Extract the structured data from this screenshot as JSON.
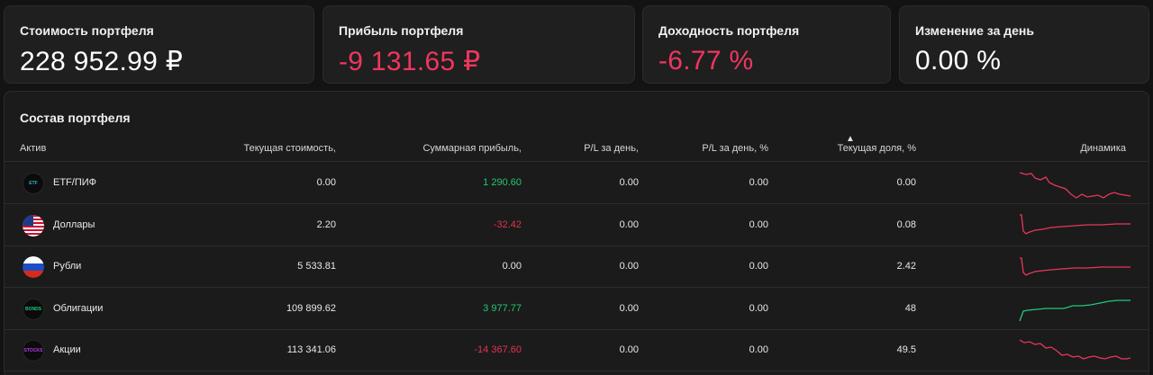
{
  "cards": [
    {
      "label": "Стоимость портфеля",
      "value": "228 952.99 ₽",
      "tone": "neutral"
    },
    {
      "label": "Прибыль портфеля",
      "value": "-9 131.65 ₽",
      "tone": "negative"
    },
    {
      "label": "Доходность портфеля",
      "value": "-6.77 %",
      "tone": "negative"
    },
    {
      "label": "Изменение за день",
      "value": "0.00 %",
      "tone": "neutral"
    }
  ],
  "table": {
    "title": "Состав портфеля",
    "columns": [
      "Актив",
      "Текущая стоимость,",
      "Суммарная прибыль,",
      "P/L за день,",
      "P/L за день, %",
      "Текущая доля, %",
      "Динамика"
    ],
    "sorted_column": "Текущая доля, %",
    "rows": [
      {
        "icon": "etf-icon",
        "icon_text": "ETF",
        "icon_color": "#2bb7c9",
        "name": "ETF/ПИФ",
        "value": "0.00",
        "profit": "1 290.60",
        "profit_tone": "positive",
        "pl_day": "0.00",
        "pl_day_pct": "0.00",
        "share": "0.00",
        "trend": "negative",
        "trend_color": "#e8365a"
      },
      {
        "icon": "usa-flag-icon",
        "icon_text": "",
        "icon_color": "",
        "name": "Доллары",
        "value": "2.20",
        "profit": "-32.42",
        "profit_tone": "negative",
        "pl_day": "0.00",
        "pl_day_pct": "0.00",
        "share": "0.08",
        "trend": "negative",
        "trend_color": "#e8365a"
      },
      {
        "icon": "russia-flag-icon",
        "icon_text": "",
        "icon_color": "",
        "name": "Рубли",
        "value": "5 533.81",
        "profit": "0.00",
        "profit_tone": "neutral",
        "pl_day": "0.00",
        "pl_day_pct": "0.00",
        "share": "2.42",
        "trend": "negative",
        "trend_color": "#e8365a"
      },
      {
        "icon": "bonds-icon",
        "icon_text": "BONDS",
        "icon_color": "#1fc87b",
        "name": "Облигации",
        "value": "109 899.62",
        "profit": "3 977.77",
        "profit_tone": "positive",
        "pl_day": "0.00",
        "pl_day_pct": "0.00",
        "share": "48",
        "trend": "positive",
        "trend_color": "#1fc87b"
      },
      {
        "icon": "stocks-icon",
        "icon_text": "STOCKS",
        "icon_color": "#b43cf0",
        "name": "Акции",
        "value": "113 341.06",
        "profit": "-14 367.60",
        "profit_tone": "negative",
        "pl_day": "0.00",
        "pl_day_pct": "0.00",
        "share": "49.5",
        "trend": "negative",
        "trend_color": "#e8365a"
      }
    ]
  }
}
